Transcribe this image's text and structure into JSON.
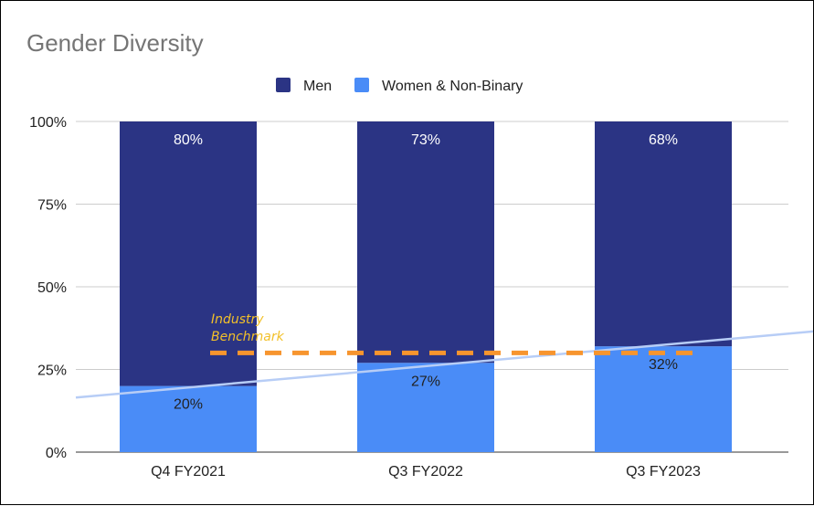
{
  "chart_data": {
    "type": "bar",
    "stacked": true,
    "title": "Gender Diversity",
    "categories": [
      "Q4 FY2021",
      "Q3 FY2022",
      "Q3 FY2023"
    ],
    "series": [
      {
        "name": "Women & Non-Binary",
        "values": [
          20,
          27,
          32
        ],
        "labels": [
          "20%",
          "27%",
          "32%"
        ],
        "color": "#4a8cf7",
        "label_color": "#222222"
      },
      {
        "name": "Men",
        "values": [
          80,
          73,
          68
        ],
        "labels": [
          "80%",
          "73%",
          "68%"
        ],
        "color": "#2b3484",
        "label_color": "#ffffff"
      }
    ],
    "legend": {
      "placement": "top-center",
      "entries": [
        {
          "name": "Men",
          "color": "#2b3484"
        },
        {
          "name": "Women & Non-Binary",
          "color": "#4a8cf7"
        }
      ]
    },
    "y_axis": {
      "min": 0,
      "max": 100,
      "ticks": [
        0,
        25,
        50,
        75,
        100
      ],
      "tick_labels": [
        "0%",
        "25%",
        "50%",
        "75%",
        "100%"
      ]
    },
    "gridlines": true,
    "benchmark": {
      "label_line1": "Industry",
      "label_line2": "Benchmark",
      "value": 30,
      "color": "#f7952e",
      "label_color": "#f2c029"
    },
    "trendline": {
      "series": "Women & Non-Binary",
      "start_value": 16.5,
      "end_value": 36.5,
      "color": "#b7cdf6"
    }
  }
}
